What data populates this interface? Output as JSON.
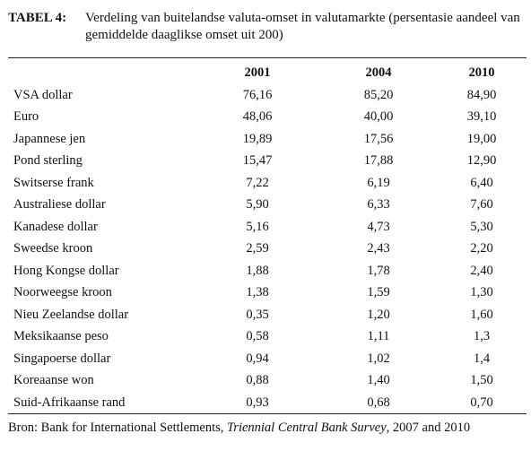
{
  "caption": {
    "label": "TABEL 4:",
    "text": "Verdeling van buitelandse valuta-omset in valutamarkte (persentasie aandeel van gemiddelde daaglikse omset uit 200)"
  },
  "table": {
    "columns": [
      "2001",
      "2004",
      "2010"
    ],
    "rows": [
      {
        "label": "VSA dollar",
        "values": [
          "76,16",
          "85,20",
          "84,90"
        ]
      },
      {
        "label": "Euro",
        "values": [
          "48,06",
          "40,00",
          "39,10"
        ]
      },
      {
        "label": "Japannese jen",
        "values": [
          "19,89",
          "17,56",
          "19,00"
        ]
      },
      {
        "label": "Pond sterling",
        "values": [
          "15,47",
          "17,88",
          "12,90"
        ]
      },
      {
        "label": "Switserse frank",
        "values": [
          "7,22",
          "6,19",
          "6,40"
        ]
      },
      {
        "label": "Australiese dollar",
        "values": [
          "5,90",
          "6,33",
          "7,60"
        ]
      },
      {
        "label": "Kanadese dollar",
        "values": [
          "5,16",
          "4,73",
          "5,30"
        ]
      },
      {
        "label": "Sweedse kroon",
        "values": [
          "2,59",
          "2,43",
          "2,20"
        ]
      },
      {
        "label": "Hong Kongse dollar",
        "values": [
          "1,88",
          "1,78",
          "2,40"
        ]
      },
      {
        "label": "Noorweegse kroon",
        "values": [
          "1,38",
          "1,59",
          "1,30"
        ]
      },
      {
        "label": "Nieu Zeelandse dollar",
        "values": [
          "0,35",
          "1,20",
          "1,60"
        ]
      },
      {
        "label": "Meksikaanse peso",
        "values": [
          "0,58",
          "1,11",
          "1,3"
        ]
      },
      {
        "label": "Singapoerse dollar",
        "values": [
          "0,94",
          "1,02",
          "1,4"
        ]
      },
      {
        "label": "Koreaanse won",
        "values": [
          "0,88",
          "1,40",
          "1,50"
        ]
      },
      {
        "label": "Suid-Afrikaanse rand",
        "values": [
          "0,93",
          "0,68",
          "0,70"
        ]
      }
    ]
  },
  "source": {
    "prefix": "Bron: Bank for International Settlements, ",
    "title": "Triennial Central Bank Survey",
    "suffix": ", 2007 and 2010"
  }
}
